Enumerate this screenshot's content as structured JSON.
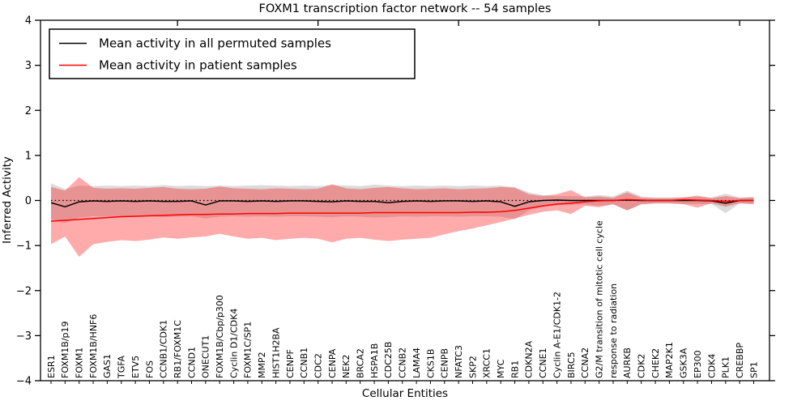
{
  "chart_data": {
    "type": "line",
    "title": "FOXM1 transcription factor network -- 54 samples",
    "xlabel": "Cellular Entities",
    "ylabel": "Inferred Activity",
    "ylim": [
      -4,
      4
    ],
    "yticks": [
      4,
      3,
      2,
      1,
      0,
      -1,
      -2,
      -3,
      -4
    ],
    "grid": false,
    "legend_position": "upper left",
    "background": "#ffffff",
    "axis_color": "#000000",
    "reference_line": {
      "y": 0,
      "style": "dotted",
      "color": "#000000"
    },
    "categories": [
      "ESR1",
      "FOXM1B/p19",
      "FOXM1",
      "FOXM1B/HNF6",
      "GAS1",
      "TGFA",
      "ETV5",
      "FOS",
      "CCNB1/CDK1",
      "RB1/FOXM1C",
      "CCND1",
      "ONECUT1",
      "FOXM1B/Cbp/p300",
      "Cyclin D1/CDK4",
      "FOXM1C/SP1",
      "MMP2",
      "HIST1H2BA",
      "CENPF",
      "CCNB1",
      "CDC2",
      "CENPA",
      "NEK2",
      "BRCA2",
      "HSPA1B",
      "CDC25B",
      "CCNB2",
      "LAMA4",
      "CKS1B",
      "CENPB",
      "NFATC3",
      "SKP2",
      "XRCC1",
      "MYC",
      "RB1",
      "CDKN2A",
      "CCNE1",
      "Cyclin A-E1/CDK1-2",
      "BIRC5",
      "CCNA2",
      "G2/M transition of mitotic cell cycle",
      "response to radiation",
      "AURKB",
      "CDK2",
      "CHEK2",
      "MAP2K1",
      "GSK3A",
      "EP300",
      "CDK4",
      "PLK1",
      "CREBBP",
      "SP1"
    ],
    "series": [
      {
        "name": "Mean activity in all permuted samples",
        "color": "#000000",
        "band_color": "rgba(0,0,0,0.14)",
        "values": [
          -0.05,
          -0.14,
          -0.03,
          -0.01,
          -0.02,
          -0.01,
          -0.02,
          -0.01,
          -0.02,
          -0.02,
          -0.01,
          -0.1,
          -0.01,
          -0.01,
          -0.02,
          -0.01,
          -0.02,
          -0.01,
          -0.01,
          -0.02,
          -0.03,
          -0.01,
          -0.02,
          -0.02,
          -0.05,
          -0.02,
          -0.01,
          -0.02,
          -0.01,
          -0.01,
          -0.02,
          -0.01,
          -0.03,
          -0.13,
          -0.03,
          0.0,
          0.01,
          0.0,
          0.0,
          0.0,
          0.0,
          0.01,
          0.0,
          0.0,
          0.0,
          0.0,
          0.0,
          -0.01,
          -0.06,
          0.0,
          0.0
        ],
        "band_upper": [
          0.38,
          0.25,
          0.33,
          0.32,
          0.33,
          0.32,
          0.33,
          0.32,
          0.34,
          0.32,
          0.33,
          0.32,
          0.33,
          0.32,
          0.33,
          0.34,
          0.33,
          0.32,
          0.33,
          0.32,
          0.34,
          0.33,
          0.32,
          0.35,
          0.33,
          0.32,
          0.33,
          0.32,
          0.33,
          0.32,
          0.33,
          0.32,
          0.33,
          0.3,
          0.18,
          0.12,
          0.1,
          0.1,
          0.09,
          0.12,
          0.09,
          0.22,
          0.09,
          0.07,
          0.07,
          0.08,
          0.08,
          0.07,
          0.15,
          0.07,
          0.08
        ],
        "band_lower": [
          -0.42,
          -0.5,
          -0.38,
          -0.35,
          -0.36,
          -0.35,
          -0.36,
          -0.35,
          -0.37,
          -0.36,
          -0.35,
          -0.4,
          -0.36,
          -0.35,
          -0.36,
          -0.35,
          -0.36,
          -0.35,
          -0.35,
          -0.36,
          -0.37,
          -0.35,
          -0.36,
          -0.38,
          -0.37,
          -0.35,
          -0.36,
          -0.35,
          -0.35,
          -0.36,
          -0.35,
          -0.35,
          -0.36,
          -0.42,
          -0.22,
          -0.13,
          -0.11,
          -0.1,
          -0.09,
          -0.12,
          -0.09,
          -0.22,
          -0.09,
          -0.07,
          -0.07,
          -0.08,
          -0.08,
          -0.08,
          -0.28,
          -0.07,
          -0.08
        ]
      },
      {
        "name": "Mean activity in patient samples",
        "color": "#ff0000",
        "band_color": "rgba(255,0,0,0.33)",
        "values": [
          -0.46,
          -0.44,
          -0.42,
          -0.4,
          -0.38,
          -0.36,
          -0.35,
          -0.34,
          -0.33,
          -0.32,
          -0.31,
          -0.31,
          -0.3,
          -0.3,
          -0.29,
          -0.29,
          -0.29,
          -0.28,
          -0.28,
          -0.28,
          -0.28,
          -0.28,
          -0.28,
          -0.27,
          -0.27,
          -0.27,
          -0.27,
          -0.27,
          -0.27,
          -0.27,
          -0.26,
          -0.26,
          -0.25,
          -0.22,
          -0.17,
          -0.12,
          -0.08,
          -0.06,
          -0.03,
          -0.01,
          0.0,
          0.02,
          0.01,
          0.0,
          0.0,
          0.02,
          0.01,
          0.0,
          -0.02,
          0.0,
          0.0
        ],
        "band_upper": [
          0.3,
          0.22,
          0.52,
          0.28,
          0.26,
          0.27,
          0.26,
          0.28,
          0.3,
          0.26,
          0.25,
          0.26,
          0.31,
          0.27,
          0.26,
          0.25,
          0.27,
          0.26,
          0.25,
          0.26,
          0.36,
          0.27,
          0.25,
          0.28,
          0.3,
          0.27,
          0.25,
          0.26,
          0.27,
          0.25,
          0.26,
          0.27,
          0.3,
          0.28,
          0.14,
          0.1,
          0.14,
          0.23,
          0.07,
          0.09,
          0.06,
          0.18,
          0.06,
          0.05,
          0.05,
          0.06,
          0.11,
          0.05,
          0.1,
          0.05,
          0.07
        ],
        "band_lower": [
          -0.97,
          -0.8,
          -1.25,
          -0.97,
          -0.92,
          -0.88,
          -0.9,
          -0.87,
          -0.82,
          -0.85,
          -0.82,
          -0.8,
          -0.74,
          -0.8,
          -0.85,
          -0.83,
          -0.88,
          -0.85,
          -0.83,
          -0.85,
          -0.93,
          -0.85,
          -0.83,
          -0.87,
          -0.9,
          -0.87,
          -0.85,
          -0.83,
          -0.75,
          -0.68,
          -0.62,
          -0.55,
          -0.48,
          -0.4,
          -0.32,
          -0.25,
          -0.22,
          -0.3,
          -0.12,
          -0.15,
          -0.08,
          -0.22,
          -0.08,
          -0.06,
          -0.06,
          -0.08,
          -0.16,
          -0.06,
          -0.14,
          -0.06,
          -0.08
        ]
      }
    ],
    "top_major_tick_indices": [
      9,
      19,
      29,
      39,
      49
    ]
  }
}
